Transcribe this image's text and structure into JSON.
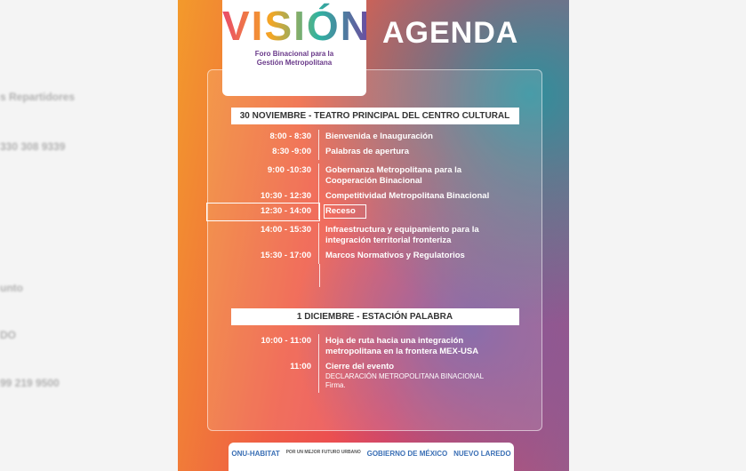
{
  "background_list": [
    "s Repartidores",
    "330 308 9339",
    "unto",
    "DO",
    "99 219 9500"
  ],
  "poster": {
    "logo_title": "VISIÓN",
    "logo_subtitle": "Foro Binacional para la Gestión Metropolitana",
    "heading": "AGENDA",
    "sections": [
      {
        "title": "30 NOVIEMBRE - TEATRO PRINCIPAL DEL CENTRO CULTURAL",
        "items": [
          {
            "time": "8:00 - 8:30",
            "text": "Bienvenida  e Inauguración"
          },
          {
            "time": "8:30 -9:00",
            "text": "Palabras de apertura"
          },
          {
            "time": "9:00 -10:30",
            "text": "Gobernanza Metropolitana para la Cooperación Binacional"
          },
          {
            "time": "10:30 - 12:30",
            "text": "Competitividad Metropolitana Binacional"
          },
          {
            "time": "12:30 - 14:00",
            "text": "Receso",
            "highlight": true
          },
          {
            "time": "14:00 - 15:30",
            "text": "Infraestructura y equipamiento para la integración territorial fronteriza"
          },
          {
            "time": "15:30 - 17:00",
            "text": "Marcos Normativos y Regulatorios"
          }
        ]
      },
      {
        "title": "1 DICIEMBRE  - ESTACIÓN PALABRA",
        "items": [
          {
            "time": "10:00 - 11:00",
            "text": "Hoja de ruta hacia una integración metropolitana en la frontera MEX-USA"
          },
          {
            "time": "11:00",
            "text": "Cierre del evento",
            "notes": [
              "DECLARACIÓN METROPOLITANA BINACIONAL",
              "Firma."
            ]
          }
        ]
      }
    ],
    "footer": [
      "ONU-HABITAT",
      "POR UN MEJOR FUTURO URBANO",
      "GOBIERNO DE MÉXICO",
      "NUEVO LAREDO"
    ]
  }
}
